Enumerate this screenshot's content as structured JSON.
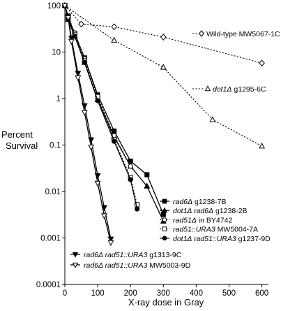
{
  "chart_data": {
    "type": "line",
    "xlabel": "X-ray dose in Gray",
    "ylabel": "Percent Survival",
    "xlim": [
      0,
      620
    ],
    "ylim": [
      0.0001,
      100
    ],
    "yscale": "log",
    "x_ticks": [
      0,
      100,
      200,
      300,
      400,
      500,
      600
    ],
    "y_ticks": [
      {
        "value": 100,
        "label": "100"
      },
      {
        "value": 10,
        "label": "10"
      },
      {
        "value": 1,
        "label": "1"
      },
      {
        "value": 0.1,
        "label": "0.1"
      },
      {
        "value": 0.01,
        "label": "0.01"
      },
      {
        "value": 0.001,
        "label": "0.001"
      },
      {
        "value": 0.0001,
        "label": "0.0001"
      }
    ],
    "grid": false,
    "series": [
      {
        "id": "wt",
        "italic": "",
        "name": "Wild-type MW5067-1C",
        "marker": "diamond-open",
        "dash": "dotted",
        "x": [
          0,
          50,
          150,
          300,
          600
        ],
        "y": [
          100,
          40,
          35,
          21,
          5.8
        ]
      },
      {
        "id": "dot1",
        "italic": "dot1Δ",
        "name": " g1295-6C",
        "marker": "triangle-open",
        "dash": "dotted",
        "x": [
          0,
          150,
          300,
          450,
          600
        ],
        "y": [
          100,
          18,
          4.7,
          0.35,
          0.095
        ]
      },
      {
        "id": "rad6",
        "italic": "rad6Δ",
        "name": " g1238-7B",
        "marker": "square-filled",
        "dash": "solid",
        "x": [
          0,
          10,
          30,
          60,
          100,
          150,
          200,
          250,
          300
        ],
        "y": [
          100,
          55,
          25,
          7.5,
          1.2,
          0.2,
          0.045,
          0.023,
          0.0032
        ]
      },
      {
        "id": "dot1rad6",
        "italic": "dot1Δ rad6Δ",
        "name": " g1238-2B",
        "marker": "triangle-filled",
        "dash": "solid",
        "x": [
          0,
          10,
          30,
          60,
          100,
          150,
          200,
          250,
          300
        ],
        "y": [
          100,
          50,
          22,
          6,
          0.95,
          0.15,
          0.035,
          0.013,
          0.0023
        ]
      },
      {
        "id": "rad51",
        "italic": "rad51Δ",
        "name": " in BY4742",
        "marker": "circle-open",
        "dash": "dotted",
        "x": [
          0,
          10,
          30,
          60,
          100,
          150,
          200
        ],
        "y": [
          100,
          60,
          26,
          7.2,
          1.1,
          0.16,
          0.035
        ]
      },
      {
        "id": "rad51ura",
        "italic": "rad51::URA3",
        "name": " MW5004-7A",
        "marker": "square-open",
        "dash": "dotted",
        "x": [
          0,
          10,
          30,
          60,
          100,
          150,
          200,
          220
        ],
        "y": [
          100,
          55,
          24,
          6.5,
          1.1,
          0.13,
          0.02,
          0.0052
        ]
      },
      {
        "id": "dot1rad51",
        "italic": "dot1Δ rad51::URA3",
        "name": " g1237-9D",
        "marker": "circle-filled",
        "dash": "solid",
        "x": [
          0,
          10,
          30,
          60,
          100,
          150,
          200,
          220
        ],
        "y": [
          100,
          50,
          22,
          6,
          0.9,
          0.12,
          0.018,
          0.0042
        ]
      },
      {
        "id": "rad6rad51a",
        "italic": "rad6Δ rad51::URA3",
        "name": " g1313-9C",
        "marker": "triangle-down-filled",
        "dash": "solid",
        "x": [
          0,
          10,
          20,
          40,
          60,
          80,
          100,
          120,
          140
        ],
        "y": [
          100,
          60,
          20,
          3.5,
          0.7,
          0.13,
          0.022,
          0.0045,
          0.00095
        ]
      },
      {
        "id": "rad6rad51b",
        "italic": "rad6Δ rad51::URA3",
        "name": " MW5003-9D",
        "marker": "triangle-down-open",
        "dash": "solid",
        "x": [
          0,
          10,
          20,
          40,
          60,
          80,
          100,
          120,
          140
        ],
        "y": [
          100,
          55,
          17,
          2.8,
          0.5,
          0.09,
          0.015,
          0.003,
          0.0008
        ]
      }
    ],
    "legend_groups": [
      [
        "rad6",
        "dot1rad6",
        "rad51",
        "rad51ura",
        "dot1rad51"
      ],
      [
        "rad6rad51a",
        "rad6rad51b"
      ]
    ],
    "inline_labels": [
      "wt",
      "dot1"
    ]
  }
}
